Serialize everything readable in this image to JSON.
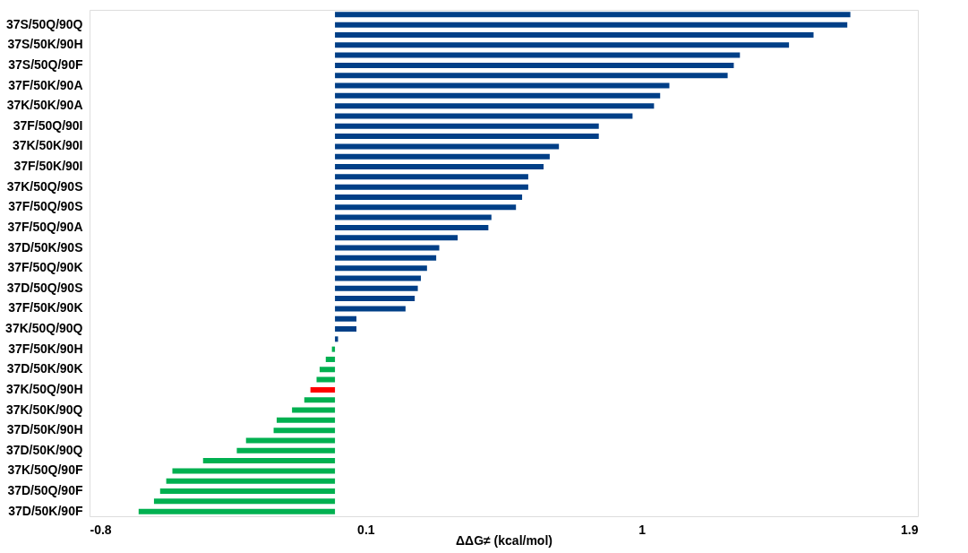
{
  "chart_data": {
    "type": "bar",
    "orientation": "horizontal",
    "xlabel": "ΔΔG≠ (kcal/mol)",
    "categories": [
      null,
      "37S/50Q/90Q",
      null,
      "37S/50K/90H",
      null,
      "37S/50Q/90F",
      null,
      "37F/50K/90A",
      null,
      "37K/50K/90A",
      null,
      "37F/50Q/90I",
      null,
      "37K/50K/90I",
      null,
      "37F/50K/90I",
      null,
      "37K/50Q/90S",
      null,
      "37F/50Q/90S",
      null,
      "37F/50Q/90A",
      null,
      "37D/50K/90S",
      null,
      "37F/50Q/90K",
      null,
      "37D/50Q/90S",
      null,
      "37F/50K/90K",
      null,
      "37K/50Q/90Q",
      null,
      "37F/50K/90H",
      null,
      "37D/50K/90K",
      null,
      "37K/50Q/90H",
      null,
      "37K/50K/90Q",
      null,
      "37D/50K/90H",
      null,
      "37D/50K/90Q",
      null,
      "37K/50Q/90F",
      null,
      "37D/50Q/90F",
      null,
      "37D/50K/90F"
    ],
    "values": [
      1.68,
      1.67,
      1.56,
      1.48,
      1.32,
      1.3,
      1.28,
      1.09,
      1.06,
      1.04,
      0.97,
      0.86,
      0.86,
      0.73,
      0.7,
      0.68,
      0.63,
      0.63,
      0.61,
      0.59,
      0.51,
      0.5,
      0.4,
      0.34,
      0.33,
      0.3,
      0.28,
      0.27,
      0.26,
      0.23,
      0.07,
      0.07,
      0.01,
      -0.01,
      -0.03,
      -0.05,
      -0.06,
      -0.08,
      -0.1,
      -0.14,
      -0.19,
      -0.2,
      -0.29,
      -0.32,
      -0.43,
      -0.53,
      -0.55,
      -0.57,
      -0.59,
      -0.64
    ],
    "colors": [
      "#003f87",
      "#003f87",
      "#003f87",
      "#003f87",
      "#003f87",
      "#003f87",
      "#003f87",
      "#003f87",
      "#003f87",
      "#003f87",
      "#003f87",
      "#003f87",
      "#003f87",
      "#003f87",
      "#003f87",
      "#003f87",
      "#003f87",
      "#003f87",
      "#003f87",
      "#003f87",
      "#003f87",
      "#003f87",
      "#003f87",
      "#003f87",
      "#003f87",
      "#003f87",
      "#003f87",
      "#003f87",
      "#003f87",
      "#003f87",
      "#003f87",
      "#003f87",
      "#003f87",
      "#00b050",
      "#00b050",
      "#00b050",
      "#00b050",
      "#ff0000",
      "#00b050",
      "#00b050",
      "#00b050",
      "#00b050",
      "#00b050",
      "#00b050",
      "#00b050",
      "#00b050",
      "#00b050",
      "#00b050",
      "#00b050",
      "#00b050"
    ],
    "xlim": [
      -0.8,
      1.9
    ],
    "xticks": [
      -0.8,
      0.1,
      1,
      1.9
    ]
  }
}
